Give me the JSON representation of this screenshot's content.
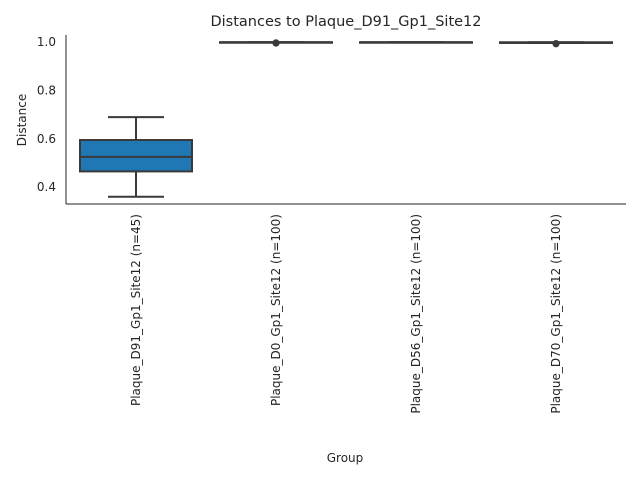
{
  "chart_data": {
    "type": "box",
    "title": "Distances to Plaque_D91_Gp1_Site12",
    "xlabel": "Group",
    "ylabel": "Distance",
    "ylim": [
      0.33,
      1.03
    ],
    "yticks": [
      "0.4",
      "0.6",
      "0.8",
      "1.0"
    ],
    "grid": false,
    "categories": [
      "Plaque_D91_Gp1_Site12 (n=45)",
      "Plaque_D0_Gp1_Site12 (n=100)",
      "Plaque_D56_Gp1_Site12 (n=100)",
      "Plaque_D70_Gp1_Site12 (n=100)"
    ],
    "boxes": [
      {
        "min": 0.36,
        "q1": 0.465,
        "median": 0.525,
        "q3": 0.595,
        "max": 0.69,
        "outliers": []
      },
      {
        "min": 1.0,
        "q1": 1.0,
        "median": 1.0,
        "q3": 1.0,
        "max": 1.0,
        "outliers": [
          0.996,
          0.998
        ]
      },
      {
        "min": 1.0,
        "q1": 1.0,
        "median": 1.0,
        "q3": 1.0,
        "max": 1.0,
        "outliers": []
      },
      {
        "min": 0.997,
        "q1": 0.997,
        "median": 0.999,
        "q3": 1.0,
        "max": 1.0,
        "outliers": [
          0.993,
          0.995
        ]
      }
    ],
    "colors": {
      "box_fill": "#1f77b4",
      "line": "#3a3a3a"
    }
  }
}
